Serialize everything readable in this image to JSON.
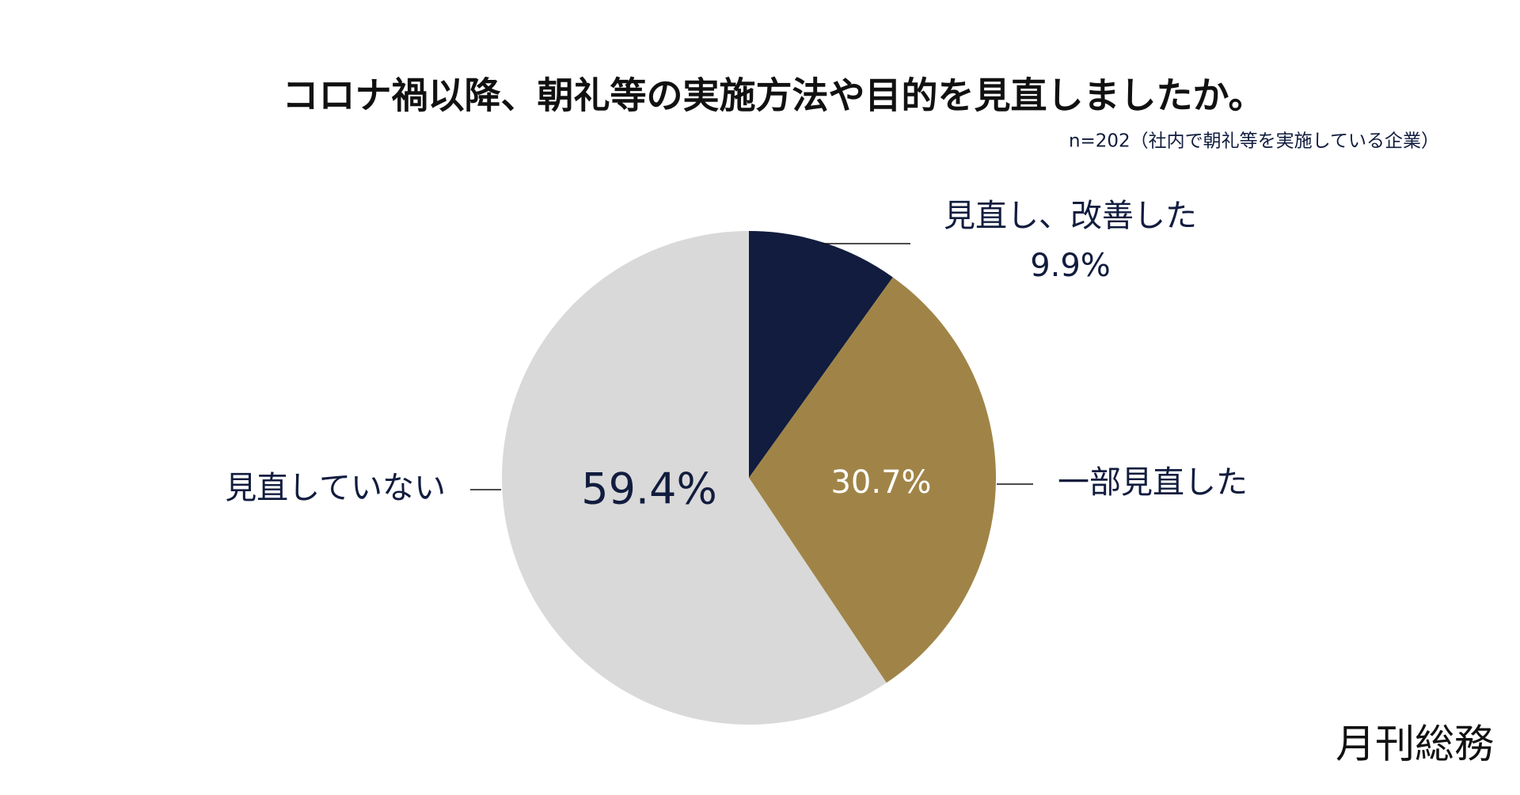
{
  "chart_data": {
    "type": "pie",
    "title": "コロナ禍以降、朝礼等の実施方法や目的を見直しましたか。",
    "subtitle": "n=202（社内で朝礼等を実施している企業）",
    "categories": [
      "見直し、改善した",
      "一部見直した",
      "見直していない"
    ],
    "values": [
      9.9,
      30.7,
      59.4
    ],
    "value_labels": [
      "9.9%",
      "30.7%",
      "59.4%"
    ],
    "colors": [
      "#111c3e",
      "#a08447",
      "#d9d9d9"
    ],
    "source": "月刊総務"
  }
}
